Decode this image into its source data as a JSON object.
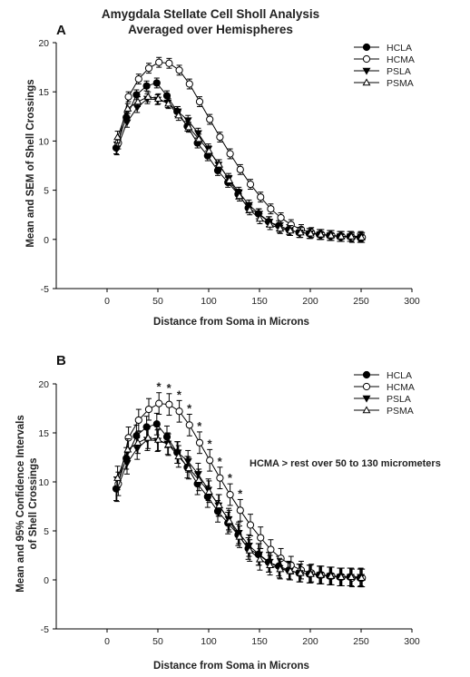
{
  "figure": {
    "title_line1": "Amygdala Stellate Cell Sholl Analysis",
    "title_line2": "Averaged over Hemispheres"
  },
  "chart_data": [
    {
      "panel": "A",
      "type": "line",
      "xlabel": "Distance from Soma in Microns",
      "ylabel": "Mean and SEM of Shell Crossings",
      "xlim": [
        -50,
        300
      ],
      "ylim": [
        -5,
        20
      ],
      "xticks": [
        0,
        50,
        100,
        150,
        200,
        250,
        300
      ],
      "yticks": [
        -5,
        0,
        5,
        10,
        15,
        20
      ],
      "legend_position": "top-right",
      "x": [
        10,
        20,
        30,
        40,
        50,
        60,
        70,
        80,
        90,
        100,
        110,
        120,
        130,
        140,
        150,
        160,
        170,
        180,
        190,
        200,
        210,
        220,
        230,
        240,
        250
      ],
      "series": [
        {
          "name": "HCLA",
          "marker": "filled-circle",
          "values": [
            9.3,
            12.4,
            14.7,
            15.6,
            15.9,
            14.6,
            13.0,
            11.5,
            9.8,
            8.5,
            7.0,
            5.8,
            4.6,
            3.2,
            2.6,
            1.8,
            1.4,
            1.0,
            0.7,
            0.6,
            0.5,
            0.4,
            0.3,
            0.3,
            0.2
          ],
          "err": [
            0.6,
            0.5,
            0.5,
            0.5,
            0.5,
            0.5,
            0.5,
            0.5,
            0.5,
            0.5,
            0.5,
            0.5,
            0.5,
            0.5,
            0.5,
            0.5,
            0.5,
            0.5,
            0.5,
            0.5,
            0.5,
            0.5,
            0.5,
            0.5,
            0.5
          ]
        },
        {
          "name": "HCMA",
          "marker": "open-circle",
          "values": [
            9.8,
            14.5,
            16.3,
            17.4,
            18.0,
            17.9,
            17.2,
            15.8,
            14.0,
            12.2,
            10.4,
            8.7,
            7.1,
            5.6,
            4.3,
            3.1,
            2.2,
            1.5,
            1.0,
            0.7,
            0.5,
            0.4,
            0.3,
            0.2,
            0.2
          ],
          "err": [
            0.6,
            0.5,
            0.5,
            0.5,
            0.5,
            0.5,
            0.5,
            0.5,
            0.5,
            0.5,
            0.5,
            0.5,
            0.5,
            0.5,
            0.5,
            0.5,
            0.5,
            0.5,
            0.5,
            0.5,
            0.5,
            0.5,
            0.5,
            0.5,
            0.5
          ]
        },
        {
          "name": "PSLA",
          "marker": "filled-triangle-down",
          "values": [
            9.2,
            11.9,
            13.4,
            14.3,
            14.2,
            13.9,
            13.0,
            12.1,
            10.8,
            9.2,
            7.6,
            6.2,
            4.8,
            3.5,
            2.6,
            1.8,
            1.2,
            0.9,
            0.7,
            0.6,
            0.5,
            0.4,
            0.3,
            0.3,
            0.3
          ],
          "err": [
            0.6,
            0.5,
            0.5,
            0.5,
            0.5,
            0.5,
            0.5,
            0.5,
            0.5,
            0.5,
            0.5,
            0.5,
            0.5,
            0.5,
            0.5,
            0.5,
            0.5,
            0.5,
            0.5,
            0.5,
            0.5,
            0.5,
            0.5,
            0.5,
            0.5
          ]
        },
        {
          "name": "PSMA",
          "marker": "open-triangle-up",
          "values": [
            10.4,
            13.3,
            14.0,
            14.5,
            14.3,
            13.8,
            12.6,
            11.4,
            10.2,
            9.0,
            7.6,
            6.0,
            4.4,
            3.0,
            2.1,
            1.5,
            1.1,
            0.9,
            0.7,
            0.6,
            0.5,
            0.4,
            0.3,
            0.3,
            0.2
          ],
          "err": [
            0.6,
            0.5,
            0.5,
            0.5,
            0.5,
            0.5,
            0.5,
            0.5,
            0.5,
            0.5,
            0.5,
            0.5,
            0.5,
            0.5,
            0.5,
            0.5,
            0.5,
            0.5,
            0.5,
            0.5,
            0.5,
            0.5,
            0.5,
            0.5,
            0.5
          ]
        }
      ]
    },
    {
      "panel": "B",
      "type": "line",
      "xlabel": "Distance from Soma in Microns",
      "ylabel_line1": "Mean and 95% Confidence Intervals",
      "ylabel_line2": "of Shell Crossings",
      "xlim": [
        -50,
        300
      ],
      "ylim": [
        -5,
        20
      ],
      "xticks": [
        0,
        50,
        100,
        150,
        200,
        250,
        300
      ],
      "yticks": [
        -5,
        0,
        5,
        10,
        15,
        20
      ],
      "legend_position": "top-right",
      "annotation": "HCMA > rest over 50 to 130 micrometers",
      "significance_marker": "*",
      "significant_x": [
        50,
        60,
        70,
        80,
        90,
        100,
        110,
        120,
        130
      ],
      "x": [
        10,
        20,
        30,
        40,
        50,
        60,
        70,
        80,
        90,
        100,
        110,
        120,
        130,
        140,
        150,
        160,
        170,
        180,
        190,
        200,
        210,
        220,
        230,
        240,
        250
      ],
      "series": [
        {
          "name": "HCLA",
          "marker": "filled-circle",
          "values": [
            9.3,
            12.4,
            14.7,
            15.6,
            15.9,
            14.6,
            13.0,
            11.5,
            9.8,
            8.5,
            7.0,
            5.8,
            4.6,
            3.2,
            2.6,
            1.8,
            1.4,
            1.0,
            0.7,
            0.6,
            0.5,
            0.4,
            0.3,
            0.3,
            0.2
          ],
          "err": [
            1.2,
            1.1,
            1.1,
            1.1,
            1.1,
            1.1,
            1.1,
            1.1,
            1.1,
            1.1,
            1.1,
            1.1,
            1.1,
            1.1,
            1.1,
            1.0,
            1.0,
            0.9,
            0.9,
            0.9,
            0.9,
            0.9,
            0.9,
            0.9,
            0.9
          ]
        },
        {
          "name": "HCMA",
          "marker": "open-circle",
          "values": [
            9.8,
            14.5,
            16.3,
            17.4,
            18.0,
            17.9,
            17.2,
            15.8,
            14.0,
            12.2,
            10.4,
            8.7,
            7.1,
            5.6,
            4.3,
            3.1,
            2.2,
            1.5,
            1.0,
            0.7,
            0.5,
            0.4,
            0.3,
            0.2,
            0.2
          ],
          "err": [
            1.2,
            1.1,
            1.1,
            1.1,
            1.1,
            1.1,
            1.1,
            1.1,
            1.1,
            1.1,
            1.1,
            1.1,
            1.1,
            1.1,
            1.1,
            1.0,
            1.0,
            0.9,
            0.9,
            0.9,
            0.9,
            0.9,
            0.9,
            0.9,
            0.9
          ]
        },
        {
          "name": "PSLA",
          "marker": "filled-triangle-down",
          "values": [
            9.2,
            11.9,
            13.4,
            14.3,
            14.2,
            13.9,
            13.0,
            12.1,
            10.8,
            9.2,
            7.6,
            6.2,
            4.8,
            3.5,
            2.6,
            1.8,
            1.2,
            0.9,
            0.7,
            0.6,
            0.5,
            0.4,
            0.3,
            0.3,
            0.3
          ],
          "err": [
            1.2,
            1.1,
            1.1,
            1.1,
            1.1,
            1.1,
            1.1,
            1.1,
            1.1,
            1.1,
            1.1,
            1.1,
            1.1,
            1.1,
            1.1,
            1.0,
            1.0,
            0.9,
            0.9,
            0.9,
            0.9,
            0.9,
            0.9,
            0.9,
            0.9
          ]
        },
        {
          "name": "PSMA",
          "marker": "open-triangle-up",
          "values": [
            10.4,
            13.3,
            14.0,
            14.5,
            14.3,
            13.8,
            12.6,
            11.4,
            10.2,
            9.0,
            7.6,
            6.0,
            4.4,
            3.0,
            2.1,
            1.5,
            1.1,
            0.9,
            0.7,
            0.6,
            0.5,
            0.4,
            0.3,
            0.3,
            0.2
          ],
          "err": [
            1.2,
            1.1,
            1.1,
            1.1,
            1.1,
            1.1,
            1.1,
            1.1,
            1.1,
            1.1,
            1.1,
            1.1,
            1.1,
            1.1,
            1.1,
            1.0,
            1.0,
            0.9,
            0.9,
            0.9,
            0.9,
            0.9,
            0.9,
            0.9,
            0.9
          ]
        }
      ]
    }
  ]
}
